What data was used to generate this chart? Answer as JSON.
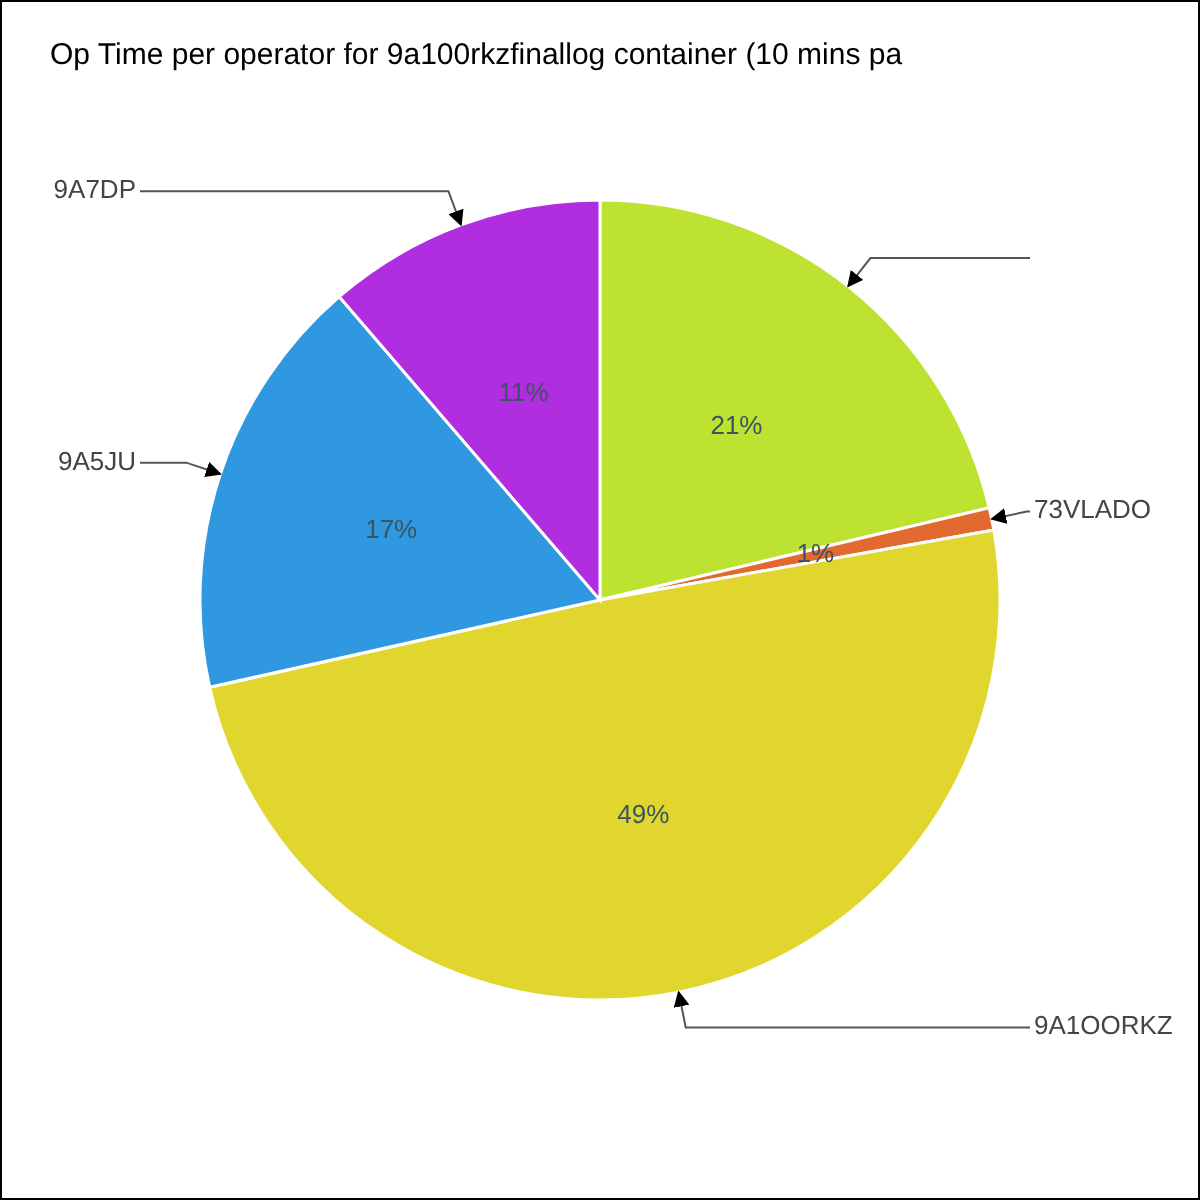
{
  "chart_data": {
    "type": "pie",
    "title": "Op Time per operator for 9a100rkzfinallog container (10 mins pa",
    "categories": [
      null,
      "73VLADO",
      "9A1OORKZ",
      "9A5JU",
      "9A7DP"
    ],
    "values": [
      21.3,
      0.9,
      49.3,
      17.2,
      11.3
    ],
    "colors": [
      "#bde232",
      "#e2692f",
      "#e0d62e",
      "#3098e0",
      "#b02de0"
    ],
    "value_labels": [
      "21%",
      "1%",
      "49%",
      "17%",
      "11%"
    ]
  }
}
